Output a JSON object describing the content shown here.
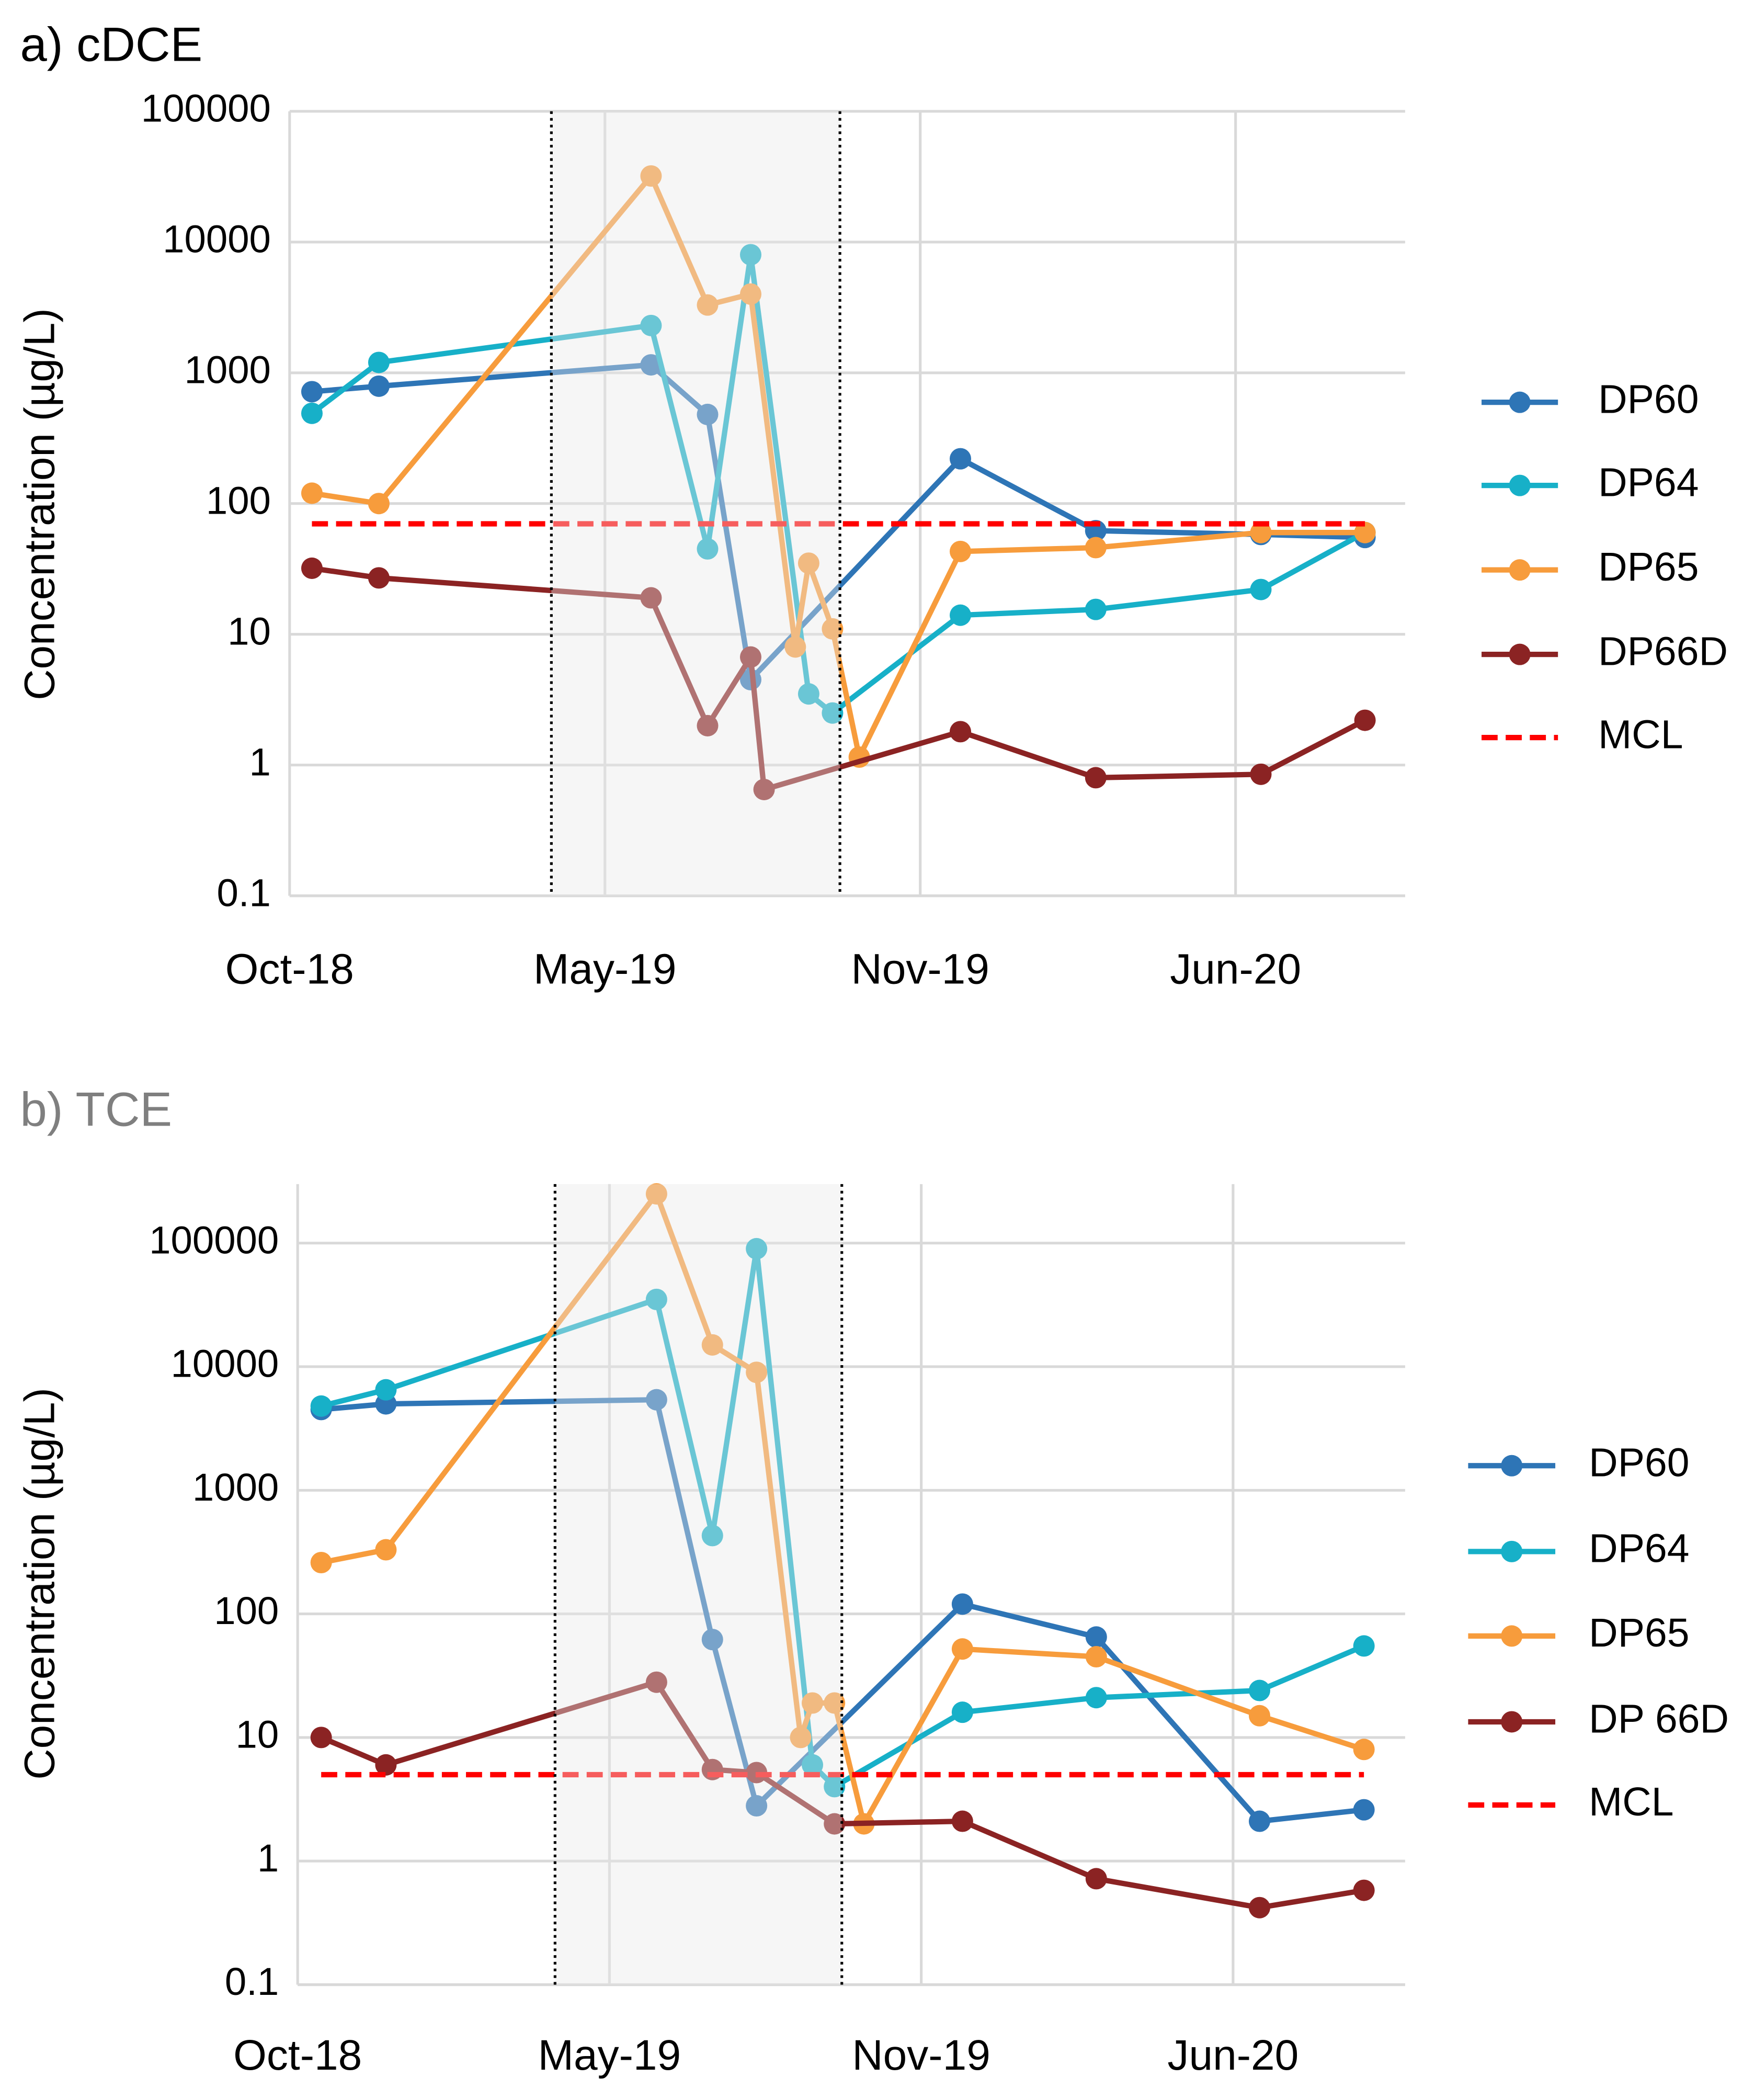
{
  "chart_data": [
    {
      "type": "line",
      "title": "a) cDCE",
      "y_label": "Concentration (µg/L)",
      "log_scale": true,
      "grid": true,
      "legend": "right",
      "xlim": [
        43374,
        44124
      ],
      "xticks": [
        {
          "value": 43374,
          "label": "Oct-18"
        },
        {
          "value": 43586,
          "label": "May-19"
        },
        {
          "value": 43798,
          "label": "Nov-19"
        },
        {
          "value": 44010,
          "label": "Jun-20"
        }
      ],
      "ylim": [
        0.1,
        100000
      ],
      "yticks": [
        0.1,
        1,
        10,
        100,
        1000,
        10000,
        100000
      ],
      "shaded_range": [
        43550,
        43744
      ],
      "series": [
        {
          "name": "DP60",
          "color": "#2e75b6",
          "x": [
            43389,
            43434,
            43617,
            43655,
            43684,
            43825,
            43916,
            44027,
            44097
          ],
          "values": [
            717,
            790,
            1150,
            480,
            4.5,
            220,
            62,
            58,
            55
          ]
        },
        {
          "name": "DP64",
          "color": "#17b0c8",
          "x": [
            43389,
            43434,
            43617,
            43655,
            43684,
            43723,
            43739,
            43825,
            43916,
            44027,
            44097
          ],
          "values": [
            490,
            1200,
            2300,
            45,
            8000,
            3.5,
            2.5,
            14,
            15.5,
            22,
            60
          ]
        },
        {
          "name": "DP65",
          "color": "#f79c3c",
          "x": [
            43389,
            43434,
            43617,
            43655,
            43684,
            43714,
            43723,
            43739,
            43757,
            43825,
            43916,
            44027,
            44097
          ],
          "values": [
            120,
            100,
            32000,
            3300,
            4000,
            8,
            35,
            11,
            1.15,
            43,
            46,
            60,
            60
          ]
        },
        {
          "name": "DP66D",
          "color": "#8b2323",
          "x": [
            43389,
            43434,
            43617,
            43655,
            43684,
            43693,
            43825,
            43916,
            44027,
            44097
          ],
          "values": [
            32,
            27,
            19,
            2,
            6.7,
            0.65,
            1.8,
            0.8,
            0.85,
            2.2
          ]
        },
        {
          "name": "MCL",
          "color": "#ff0000",
          "dashed": true,
          "x": [
            43389,
            44097
          ],
          "values": [
            70,
            70
          ]
        }
      ]
    },
    {
      "type": "line",
      "title": "b) TCE",
      "y_label": "Concentration (µg/L)",
      "log_scale": true,
      "grid": true,
      "legend": "right",
      "xlim": [
        43374,
        44127
      ],
      "xticks": [
        {
          "value": 43374,
          "label": "Oct-18"
        },
        {
          "value": 43586,
          "label": "May-19"
        },
        {
          "value": 43798,
          "label": "Nov-19"
        },
        {
          "value": 44010,
          "label": "Jun-20"
        }
      ],
      "ylim": [
        0.1,
        300000
      ],
      "yticks": [
        0.1,
        1,
        10,
        100,
        1000,
        10000,
        100000
      ],
      "shaded_range": [
        43549,
        43744
      ],
      "series": [
        {
          "name": "DP60",
          "color": "#2e75b6",
          "x": [
            43390,
            43434,
            43618,
            43656,
            43686,
            43826,
            43917,
            44028,
            44099
          ],
          "values": [
            4500,
            5000,
            5400,
            62,
            2.8,
            120,
            65,
            2.1,
            2.6
          ]
        },
        {
          "name": "DP64",
          "color": "#17b0c8",
          "x": [
            43390,
            43434,
            43618,
            43656,
            43686,
            43724,
            43739,
            43826,
            43917,
            44028,
            44099
          ],
          "values": [
            4800,
            6500,
            35000,
            430,
            90000,
            6,
            4,
            16,
            21,
            24,
            55
          ]
        },
        {
          "name": "DP65",
          "color": "#f79c3c",
          "x": [
            43390,
            43434,
            43618,
            43656,
            43686,
            43716,
            43724,
            43739,
            43759,
            43826,
            43917,
            44028,
            44099
          ],
          "values": [
            260,
            330,
            250000,
            15000,
            9000,
            10,
            19,
            19,
            2,
            52,
            45,
            15,
            8
          ]
        },
        {
          "name": "DP 66D",
          "color": "#8b2323",
          "x": [
            43390,
            43434,
            43618,
            43656,
            43686,
            43739,
            43826,
            43917,
            44028,
            44099
          ],
          "values": [
            10,
            6,
            28,
            5.5,
            5.2,
            2,
            2.1,
            0.72,
            0.42,
            0.58
          ]
        },
        {
          "name": "MCL",
          "color": "#ff0000",
          "dashed": true,
          "x": [
            43390,
            44099
          ],
          "values": [
            5,
            5
          ]
        }
      ]
    }
  ]
}
